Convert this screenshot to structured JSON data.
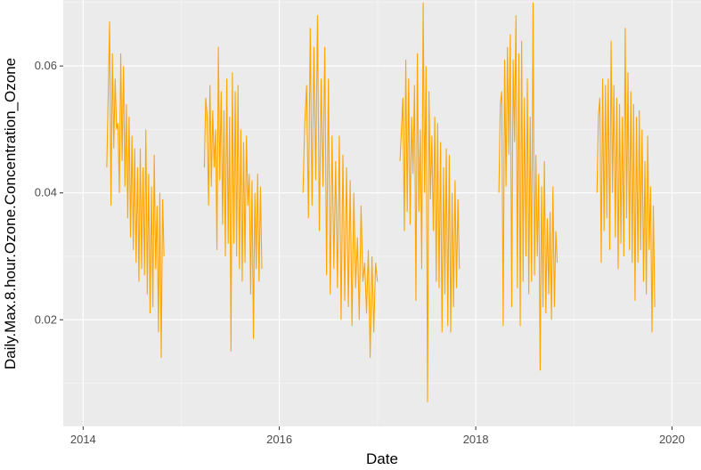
{
  "chart_data": {
    "type": "line",
    "title": "",
    "xlabel": "Date",
    "ylabel": "Daily.Max.8.hour.Ozone.Concentration_Ozone",
    "x_range": [
      "2013-10-19",
      "2020-04-18"
    ],
    "ylim": [
      0.0032,
      0.0704
    ],
    "x_ticks": [
      {
        "label": "2014",
        "date": "2014-01-01"
      },
      {
        "label": "2016",
        "date": "2016-01-01"
      },
      {
        "label": "2018",
        "date": "2018-01-01"
      },
      {
        "label": "2020",
        "date": "2020-01-01"
      }
    ],
    "y_ticks": [
      {
        "label": "0.02",
        "value": 0.02
      },
      {
        "label": "0.04",
        "value": 0.04
      },
      {
        "label": "0.06",
        "value": 0.06
      }
    ],
    "grid": true,
    "background": "#ebebeb",
    "series": [
      {
        "color": "#ffa500",
        "seasons": [
          {
            "start": "2014-03-30",
            "end": "2014-10-29",
            "points": [
              [
                0.044,
                0.055
              ],
              [
                0.067,
                0.038
              ],
              [
                0.062,
                0.047
              ],
              [
                0.058,
                0.05
              ],
              [
                0.051,
                0.04
              ],
              [
                0.062,
                0.045
              ],
              [
                0.06,
                0.041
              ],
              [
                0.054,
                0.036
              ],
              [
                0.052,
                0.033
              ],
              [
                0.049,
                0.031
              ],
              [
                0.047,
                0.029
              ],
              [
                0.044,
                0.026
              ],
              [
                0.047,
                0.028
              ],
              [
                0.044,
                0.027
              ],
              [
                0.05,
                0.024
              ],
              [
                0.043,
                0.021
              ],
              [
                0.041,
                0.022
              ],
              [
                0.046,
                0.028
              ],
              [
                0.038,
                0.018
              ],
              [
                0.04,
                0.014
              ],
              [
                0.039,
                0.03
              ]
            ]
          },
          {
            "start": "2015-03-28",
            "end": "2015-10-28",
            "points": [
              [
                0.044,
                0.055
              ],
              [
                0.052,
                0.038
              ],
              [
                0.057,
                0.041
              ],
              [
                0.053,
                0.044
              ],
              [
                0.05,
                0.031
              ],
              [
                0.063,
                0.042
              ],
              [
                0.056,
                0.035
              ],
              [
                0.053,
                0.03
              ],
              [
                0.058,
                0.032
              ],
              [
                0.052,
                0.015
              ],
              [
                0.059,
                0.032
              ],
              [
                0.056,
                0.03
              ],
              [
                0.057,
                0.028
              ],
              [
                0.05,
                0.026
              ],
              [
                0.048,
                0.029
              ],
              [
                0.049,
                0.038
              ],
              [
                0.043,
                0.024
              ],
              [
                0.042,
                0.017
              ],
              [
                0.04,
                0.028
              ],
              [
                0.043,
                0.026
              ],
              [
                0.041,
                0.028
              ]
            ]
          },
          {
            "start": "2016-03-29",
            "end": "2016-12-31",
            "points": [
              [
                0.04,
                0.051
              ],
              [
                0.057,
                0.036
              ],
              [
                0.066,
                0.038
              ],
              [
                0.063,
                0.042
              ],
              [
                0.068,
                0.034
              ],
              [
                0.058,
                0.041
              ],
              [
                0.063,
                0.027
              ],
              [
                0.058,
                0.024
              ],
              [
                0.049,
                0.028
              ],
              [
                0.045,
                0.025
              ],
              [
                0.049,
                0.02
              ],
              [
                0.046,
                0.023
              ],
              [
                0.044,
                0.022
              ],
              [
                0.042,
                0.019
              ],
              [
                0.04,
                0.025
              ],
              [
                0.033,
                0.02
              ],
              [
                0.038,
                0.026
              ],
              [
                0.029,
                0.021
              ],
              [
                0.031,
                0.014
              ],
              [
                0.03,
                0.018
              ],
              [
                0.029,
                0.026
              ]
            ]
          },
          {
            "start": "2017-03-25",
            "end": "2017-11-01",
            "points": [
              [
                0.045,
                0.05
              ],
              [
                0.055,
                0.034
              ],
              [
                0.061,
                0.037
              ],
              [
                0.058,
                0.035
              ],
              [
                0.052,
                0.043
              ],
              [
                0.057,
                0.023
              ],
              [
                0.062,
                0.037
              ],
              [
                0.05,
                0.028
              ],
              [
                0.07,
                0.04
              ],
              [
                0.06,
                0.007
              ],
              [
                0.056,
                0.039
              ],
              [
                0.049,
                0.034
              ],
              [
                0.052,
                0.026
              ],
              [
                0.051,
                0.025
              ],
              [
                0.048,
                0.018
              ],
              [
                0.044,
                0.024
              ],
              [
                0.047,
                0.019
              ],
              [
                0.046,
                0.018
              ],
              [
                0.04,
                0.022
              ],
              [
                0.042,
                0.025
              ],
              [
                0.039,
                0.028
              ]
            ]
          },
          {
            "start": "2018-03-28",
            "end": "2018-10-31",
            "points": [
              [
                0.04,
                0.054
              ],
              [
                0.056,
                0.019
              ],
              [
                0.061,
                0.041
              ],
              [
                0.063,
                0.046
              ],
              [
                0.065,
                0.022
              ],
              [
                0.061,
                0.048
              ],
              [
                0.068,
                0.025
              ],
              [
                0.062,
                0.019
              ],
              [
                0.064,
                0.026
              ],
              [
                0.055,
                0.03
              ],
              [
                0.058,
                0.024
              ],
              [
                0.052,
                0.026
              ],
              [
                0.07,
                0.027
              ],
              [
                0.046,
                0.03
              ],
              [
                0.043,
                0.012
              ],
              [
                0.041,
                0.022
              ],
              [
                0.045,
                0.021
              ],
              [
                0.036,
                0.024
              ],
              [
                0.037,
                0.02
              ],
              [
                0.041,
                0.022
              ],
              [
                0.034,
                0.029
              ]
            ]
          },
          {
            "start": "2019-03-28",
            "end": "2019-10-29",
            "points": [
              [
                0.04,
                0.052
              ],
              [
                0.055,
                0.029
              ],
              [
                0.058,
                0.034
              ],
              [
                0.057,
                0.036
              ],
              [
                0.058,
                0.031
              ],
              [
                0.064,
                0.04
              ],
              [
                0.057,
                0.033
              ],
              [
                0.055,
                0.028
              ],
              [
                0.054,
                0.032
              ],
              [
                0.052,
                0.03
              ],
              [
                0.066,
                0.036
              ],
              [
                0.059,
                0.031
              ],
              [
                0.056,
                0.029
              ],
              [
                0.054,
                0.023
              ],
              [
                0.052,
                0.029
              ],
              [
                0.053,
                0.031
              ],
              [
                0.05,
                0.026
              ],
              [
                0.045,
                0.024
              ],
              [
                0.049,
                0.031
              ],
              [
                0.041,
                0.018
              ],
              [
                0.038,
                0.022
              ]
            ]
          }
        ]
      }
    ]
  }
}
